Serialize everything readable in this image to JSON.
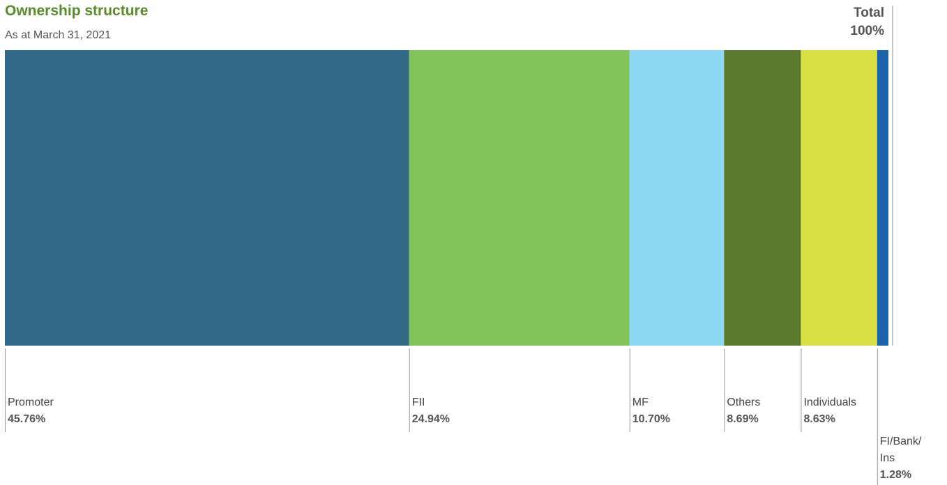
{
  "chart_data": {
    "type": "proportional-bar",
    "title": "Ownership structure",
    "subtitle": "As at March 31, 2021",
    "total_label": "Total",
    "total": 100,
    "total_value_label": "100%",
    "categories": [
      "Promoter",
      "FII",
      "MF",
      "Others",
      "Individuals",
      "FI/Bank/ Ins"
    ],
    "values": [
      45.76,
      24.94,
      10.7,
      8.69,
      8.63,
      1.28
    ],
    "value_labels": [
      "45.76%",
      "24.94%",
      "10.70%",
      "8.69%",
      "8.63%",
      "1.28%"
    ],
    "colors": [
      "#336a87",
      "#82c35a",
      "#8dd8f5",
      "#5c7a2e",
      "#d8e043",
      "#1c63ad"
    ]
  }
}
